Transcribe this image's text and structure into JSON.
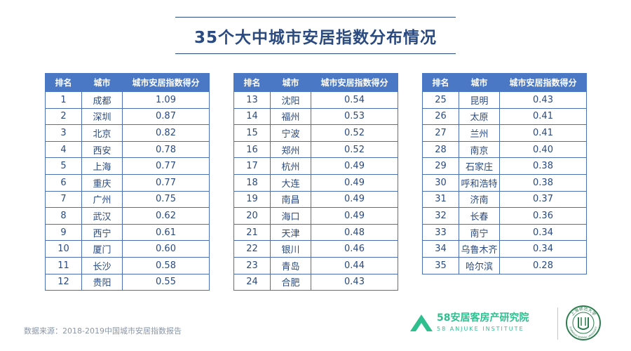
{
  "title": "35个大中城市安居指数分布情况",
  "headers": {
    "rank": "排名",
    "city": "城市",
    "score": "城市安居指数得分"
  },
  "tables": [
    {
      "rows": [
        {
          "rank": "1",
          "city": "成都",
          "score": "1.09"
        },
        {
          "rank": "2",
          "city": "深圳",
          "score": "0.87"
        },
        {
          "rank": "3",
          "city": "北京",
          "score": "0.82"
        },
        {
          "rank": "4",
          "city": "西安",
          "score": "0.78"
        },
        {
          "rank": "5",
          "city": "上海",
          "score": "0.77"
        },
        {
          "rank": "6",
          "city": "重庆",
          "score": "0.77"
        },
        {
          "rank": "7",
          "city": "广州",
          "score": "0.75"
        },
        {
          "rank": "8",
          "city": "武汉",
          "score": "0.62"
        },
        {
          "rank": "9",
          "city": "西宁",
          "score": "0.61"
        },
        {
          "rank": "10",
          "city": "厦门",
          "score": "0.60"
        },
        {
          "rank": "11",
          "city": "长沙",
          "score": "0.58"
        },
        {
          "rank": "12",
          "city": "贵阳",
          "score": "0.55"
        }
      ]
    },
    {
      "rows": [
        {
          "rank": "13",
          "city": "沈阳",
          "score": "0.54"
        },
        {
          "rank": "14",
          "city": "福州",
          "score": "0.53"
        },
        {
          "rank": "15",
          "city": "宁波",
          "score": "0.52"
        },
        {
          "rank": "16",
          "city": "郑州",
          "score": "0.52"
        },
        {
          "rank": "17",
          "city": "杭州",
          "score": "0.49"
        },
        {
          "rank": "18",
          "city": "大连",
          "score": "0.49"
        },
        {
          "rank": "19",
          "city": "南昌",
          "score": "0.49"
        },
        {
          "rank": "20",
          "city": "海口",
          "score": "0.49"
        },
        {
          "rank": "21",
          "city": "天津",
          "score": "0.48"
        },
        {
          "rank": "22",
          "city": "银川",
          "score": "0.46"
        },
        {
          "rank": "23",
          "city": "青岛",
          "score": "0.44"
        },
        {
          "rank": "24",
          "city": "合肥",
          "score": "0.43"
        }
      ]
    },
    {
      "rows": [
        {
          "rank": "25",
          "city": "昆明",
          "score": "0.43"
        },
        {
          "rank": "26",
          "city": "太原",
          "score": "0.41"
        },
        {
          "rank": "27",
          "city": "兰州",
          "score": "0.41"
        },
        {
          "rank": "28",
          "city": "南京",
          "score": "0.40"
        },
        {
          "rank": "29",
          "city": "石家庄",
          "score": "0.38"
        },
        {
          "rank": "30",
          "city": "呼和浩特",
          "score": "0.38"
        },
        {
          "rank": "31",
          "city": "济南",
          "score": "0.37"
        },
        {
          "rank": "32",
          "city": "长春",
          "score": "0.36"
        },
        {
          "rank": "33",
          "city": "南宁",
          "score": "0.34"
        },
        {
          "rank": "34",
          "city": "乌鲁木齐",
          "score": "0.34"
        },
        {
          "rank": "35",
          "city": "哈尔滨",
          "score": "0.28"
        }
      ]
    }
  ],
  "source": "数据来源：2018-2019中国城市安居指数报告",
  "logo": {
    "cn": "58安居客房产研究院",
    "en": "58 ANJUKE INSTITUTE"
  },
  "seal": {
    "cn": "上海师范大学",
    "en": "SHANGHAI NORMAL UNIVERSITY"
  },
  "colors": {
    "header": "#4a78c4",
    "text": "#2a4a80",
    "logo": "#2fbf8e",
    "seal": "#2e7d4f"
  }
}
